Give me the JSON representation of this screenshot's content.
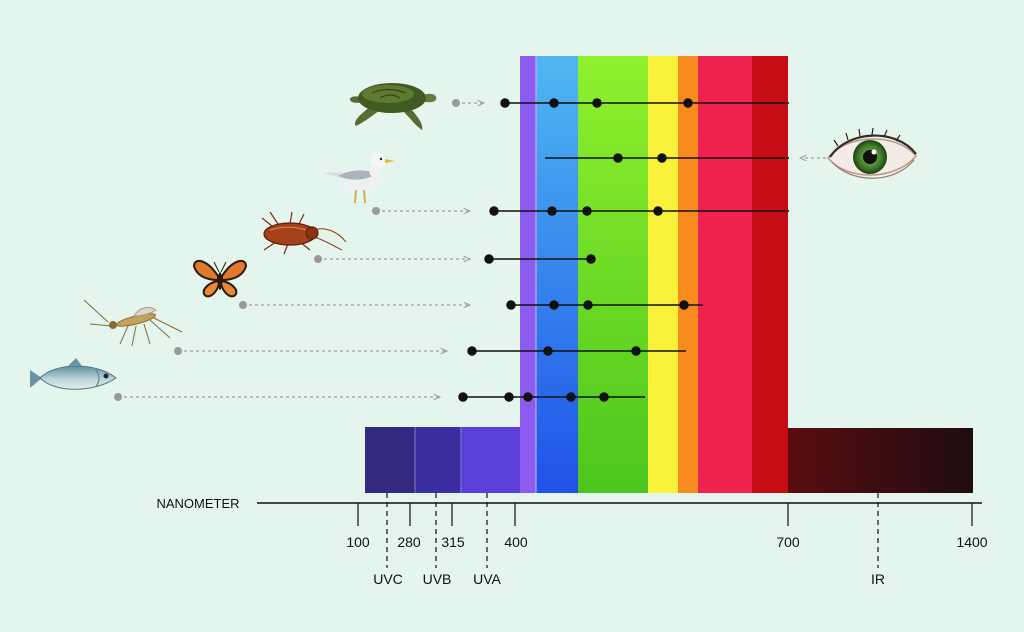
{
  "axis": {
    "label": "NANOMETER",
    "ticks": [
      "100",
      "280",
      "315",
      "400",
      "700",
      "1400"
    ],
    "band_labels": [
      "UVC",
      "UVB",
      "UVA",
      "IR"
    ]
  },
  "colors": {
    "background": "#e3f5ec",
    "uvc": "#332a80",
    "uvb": "#3a2ea0",
    "uva": "#5a3fd8",
    "violet": "#8c5cf0",
    "blue_top": "#4fb8f2",
    "blue_bottom": "#1f52e8",
    "green_top": "#90f02e",
    "green_bottom": "#4cc61e",
    "yellow": "#faf23a",
    "orange": "#f78b1e",
    "red_pink": "#f0234f",
    "red": "#c60d14",
    "dark_red": "#800a14",
    "ir_start": "#5a0d10",
    "ir_end": "#1e0c10",
    "guide_line": "#9aa0a0",
    "guide_dot": "#9a9a9a",
    "marker": "#111111"
  },
  "animals": [
    {
      "name": "turtle",
      "icon": "turtle-icon"
    },
    {
      "name": "human",
      "icon": "eye-icon"
    },
    {
      "name": "bird",
      "icon": "bird-icon"
    },
    {
      "name": "cockroach",
      "icon": "cockroach-icon"
    },
    {
      "name": "butterfly",
      "icon": "butterfly-icon"
    },
    {
      "name": "mosquito",
      "icon": "mosquito-icon"
    },
    {
      "name": "fish",
      "icon": "fish-icon"
    }
  ]
}
